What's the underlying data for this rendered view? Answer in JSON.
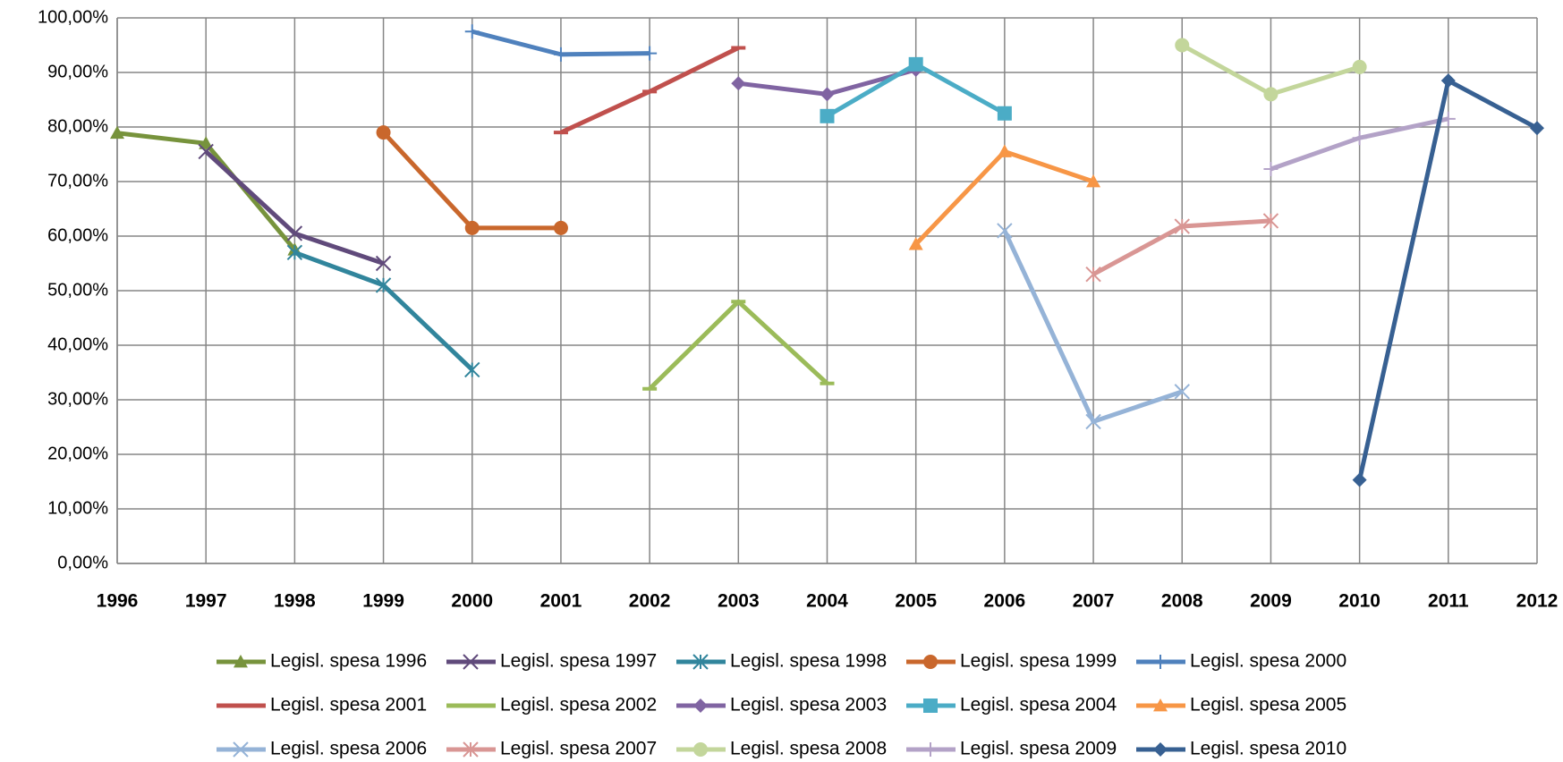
{
  "chart_data": {
    "type": "line",
    "categories": [
      "1996",
      "1997",
      "1998",
      "1999",
      "2000",
      "2001",
      "2002",
      "2003",
      "2004",
      "2005",
      "2006",
      "2007",
      "2008",
      "2009",
      "2010",
      "2011",
      "2012"
    ],
    "ylim": [
      0,
      100
    ],
    "yticks": [
      {
        "value": 0,
        "label": "0,00%"
      },
      {
        "value": 10,
        "label": "10,00%"
      },
      {
        "value": 20,
        "label": "20,00%"
      },
      {
        "value": 30,
        "label": "30,00%"
      },
      {
        "value": 40,
        "label": "40,00%"
      },
      {
        "value": 50,
        "label": "50,00%"
      },
      {
        "value": 60,
        "label": "60,00%"
      },
      {
        "value": 70,
        "label": "70,00%"
      },
      {
        "value": 80,
        "label": "80,00%"
      },
      {
        "value": 90,
        "label": "90,00%"
      },
      {
        "value": 100,
        "label": "100,00%"
      }
    ],
    "grid": true,
    "legend": "bottom",
    "series": [
      {
        "name": "Legisl. spesa 1996",
        "color": "#77933C",
        "marker": "triangle",
        "values": [
          78.9,
          77,
          57.5,
          null,
          null,
          null,
          null,
          null,
          null,
          null,
          null,
          null,
          null,
          null,
          null,
          null,
          null
        ]
      },
      {
        "name": "Legisl. spesa 1997",
        "color": "#604A7B",
        "marker": "x",
        "values": [
          null,
          75.5,
          60.5,
          55,
          null,
          null,
          null,
          null,
          null,
          null,
          null,
          null,
          null,
          null,
          null,
          null,
          null
        ]
      },
      {
        "name": "Legisl. spesa 1998",
        "color": "#31859C",
        "marker": "star",
        "values": [
          null,
          null,
          57,
          51,
          35.5,
          null,
          null,
          null,
          null,
          null,
          null,
          null,
          null,
          null,
          null,
          null,
          null
        ]
      },
      {
        "name": "Legisl. spesa 1999",
        "color": "#C9672C",
        "marker": "circle",
        "values": [
          null,
          null,
          null,
          79,
          61.5,
          61.5,
          null,
          null,
          null,
          null,
          null,
          null,
          null,
          null,
          null,
          null,
          null
        ]
      },
      {
        "name": "Legisl. spesa 2000",
        "color": "#4F81BD",
        "marker": "plus",
        "values": [
          null,
          null,
          null,
          null,
          97.5,
          93.3,
          93.5,
          null,
          null,
          null,
          null,
          null,
          null,
          null,
          null,
          null,
          null
        ]
      },
      {
        "name": "Legisl. spesa 2001",
        "color": "#C0504D",
        "marker": "dash",
        "values": [
          null,
          null,
          null,
          null,
          null,
          79,
          86.5,
          94.5,
          null,
          null,
          null,
          null,
          null,
          null,
          null,
          null,
          null
        ]
      },
      {
        "name": "Legisl. spesa 2002",
        "color": "#9BBB59",
        "marker": "dash",
        "values": [
          null,
          null,
          null,
          null,
          null,
          null,
          32,
          48,
          33,
          null,
          null,
          null,
          null,
          null,
          null,
          null,
          null
        ]
      },
      {
        "name": "Legisl. spesa 2003",
        "color": "#8064A2",
        "marker": "diamond",
        "values": [
          null,
          null,
          null,
          null,
          null,
          null,
          null,
          88,
          86,
          90.5,
          null,
          null,
          null,
          null,
          null,
          null,
          null
        ]
      },
      {
        "name": "Legisl. spesa 2004",
        "color": "#4BACC6",
        "marker": "square",
        "values": [
          null,
          null,
          null,
          null,
          null,
          null,
          null,
          null,
          82,
          91.5,
          82.5,
          null,
          null,
          null,
          null,
          null,
          null
        ]
      },
      {
        "name": "Legisl. spesa 2005",
        "color": "#F79646",
        "marker": "triangle",
        "values": [
          null,
          null,
          null,
          null,
          null,
          null,
          null,
          null,
          null,
          58.5,
          75.5,
          70,
          null,
          null,
          null,
          null,
          null
        ]
      },
      {
        "name": "Legisl. spesa 2006",
        "color": "#95B3D7",
        "marker": "x",
        "values": [
          null,
          null,
          null,
          null,
          null,
          null,
          null,
          null,
          null,
          null,
          61,
          26,
          31.5,
          null,
          null,
          null,
          null
        ]
      },
      {
        "name": "Legisl. spesa 2007",
        "color": "#D99694",
        "marker": "star",
        "values": [
          null,
          null,
          null,
          null,
          null,
          null,
          null,
          null,
          null,
          null,
          null,
          53,
          61.8,
          62.8,
          null,
          null,
          null
        ]
      },
      {
        "name": "Legisl. spesa 2008",
        "color": "#C3D69B",
        "marker": "circle",
        "values": [
          null,
          null,
          null,
          null,
          null,
          null,
          null,
          null,
          null,
          null,
          null,
          null,
          95,
          86,
          91,
          null,
          null
        ]
      },
      {
        "name": "Legisl. spesa 2009",
        "color": "#B3A2C7",
        "marker": "plus",
        "values": [
          null,
          null,
          null,
          null,
          null,
          null,
          null,
          null,
          null,
          null,
          null,
          null,
          null,
          72.3,
          78,
          81.5,
          null
        ]
      },
      {
        "name": "Legisl. spesa 2010",
        "color": "#376092",
        "marker": "diamond",
        "values": [
          null,
          null,
          null,
          null,
          null,
          null,
          null,
          null,
          null,
          null,
          null,
          null,
          null,
          null,
          15.3,
          88.5,
          79.8
        ]
      }
    ]
  }
}
